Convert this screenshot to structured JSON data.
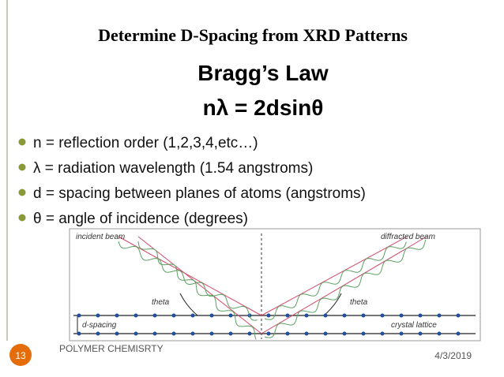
{
  "header": {
    "title": "Determine D-Spacing from XRD Patterns"
  },
  "body": {
    "heading": "Bragg’s Law",
    "equation": "nλ = 2dsinθ",
    "bullets": [
      "n = reflection order (1,2,3,4,etc…)",
      "λ = radiation wavelength (1.54 angstroms)",
      "d = spacing between planes of atoms (angstroms)",
      "θ = angle of incidence (degrees)"
    ]
  },
  "figure": {
    "incident": "incident beam",
    "diffracted": "diffracted beam",
    "theta_left": "theta",
    "theta_right": "theta",
    "spacing": "d-spacing",
    "lattice": "crystal lattice"
  },
  "footer": {
    "slide_number": "13",
    "text": "POLYMER CHEMISRTY",
    "date": "4/3/2019"
  }
}
